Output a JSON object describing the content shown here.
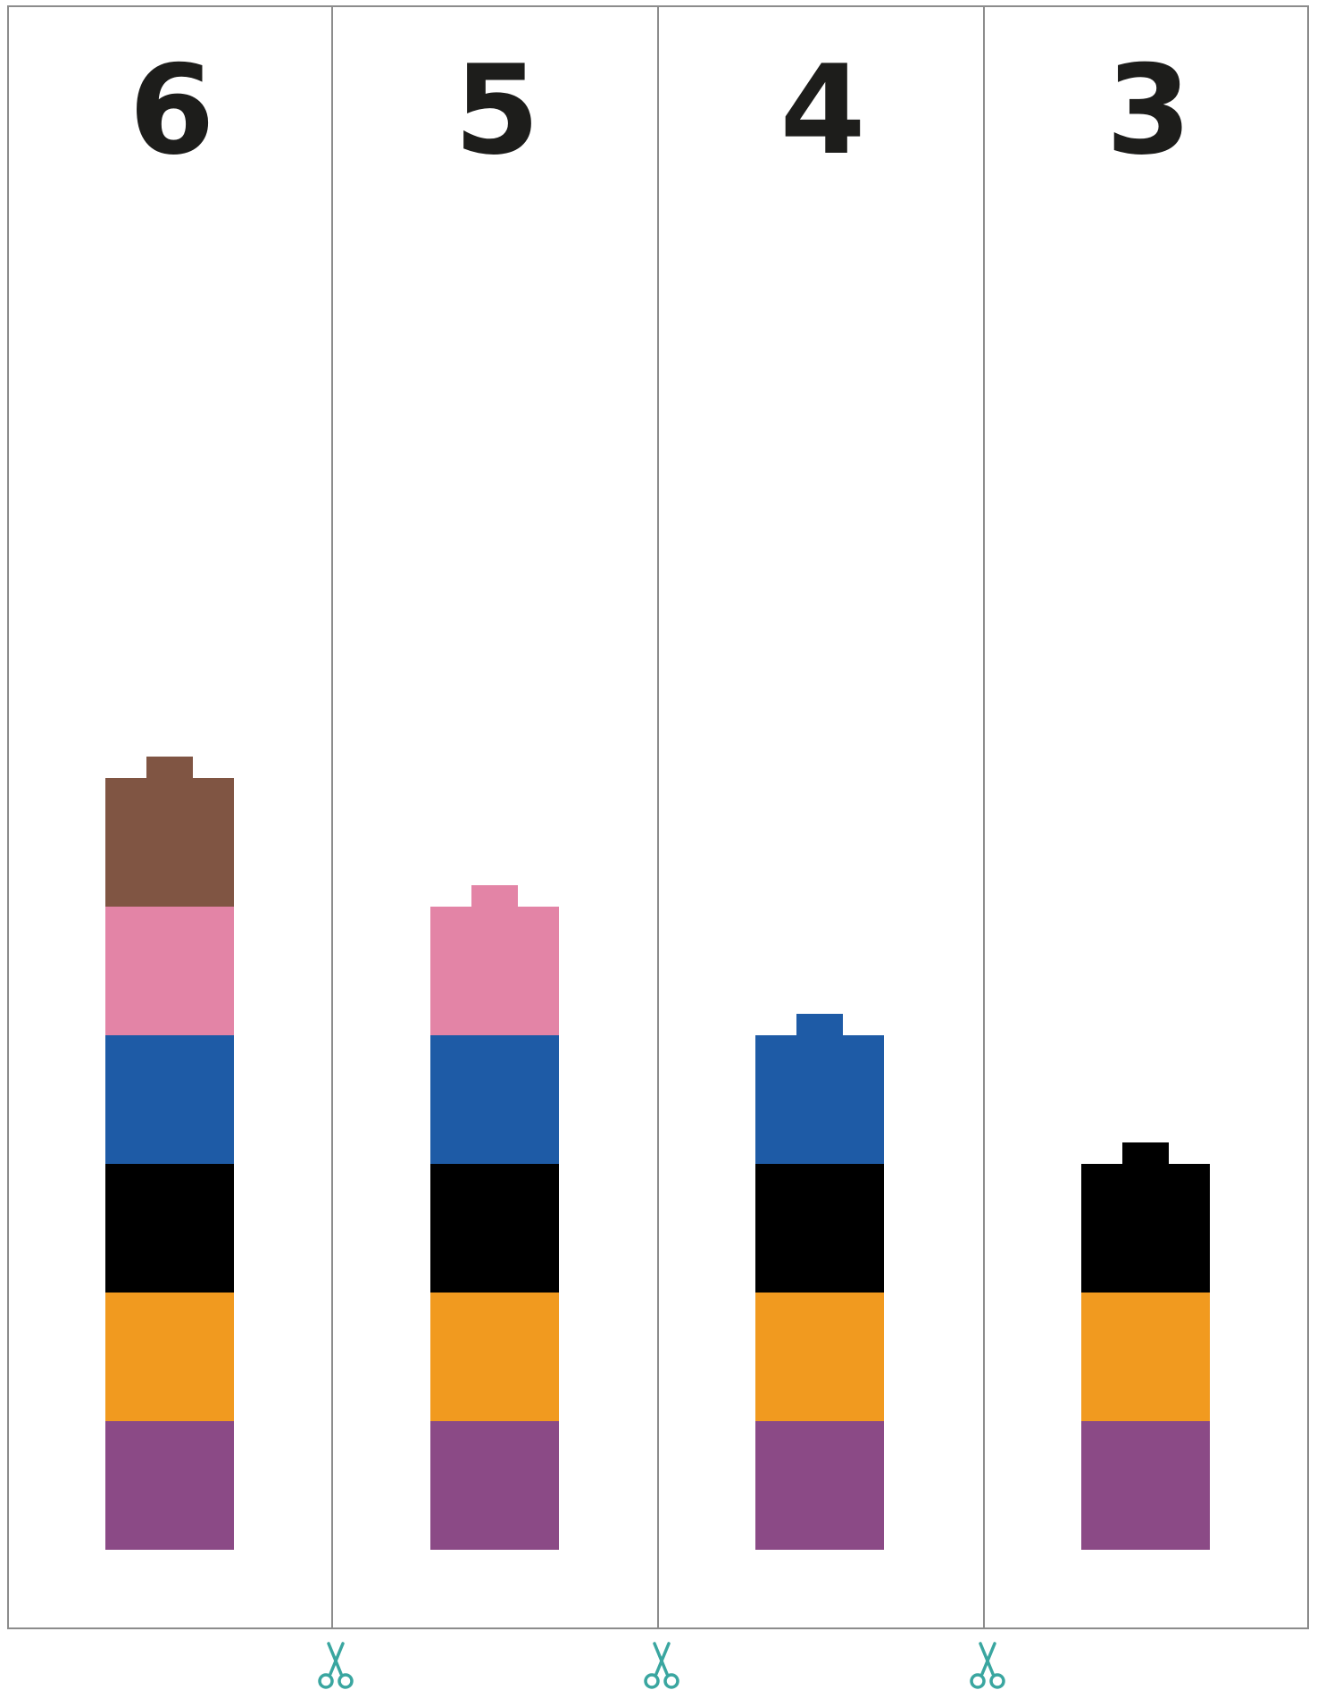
{
  "columns": [
    {
      "number": "6",
      "blocks": [
        "#8b4a86",
        "#f19a1f",
        "#000000",
        "#1e5ba6",
        "#e384a6",
        "#805543"
      ]
    },
    {
      "number": "5",
      "blocks": [
        "#8b4a86",
        "#f19a1f",
        "#000000",
        "#1e5ba6",
        "#e384a6"
      ]
    },
    {
      "number": "4",
      "blocks": [
        "#8b4a86",
        "#f19a1f",
        "#000000",
        "#1e5ba6"
      ]
    },
    {
      "number": "3",
      "blocks": [
        "#8b4a86",
        "#f19a1f",
        "#000000"
      ]
    }
  ],
  "colors": {
    "border": "#8c8c8c",
    "number": "#1d1d1b",
    "scissors": "#3aa6a0"
  },
  "icons": {
    "cut_marks": [
      "scissors-icon",
      "scissors-icon",
      "scissors-icon"
    ]
  }
}
